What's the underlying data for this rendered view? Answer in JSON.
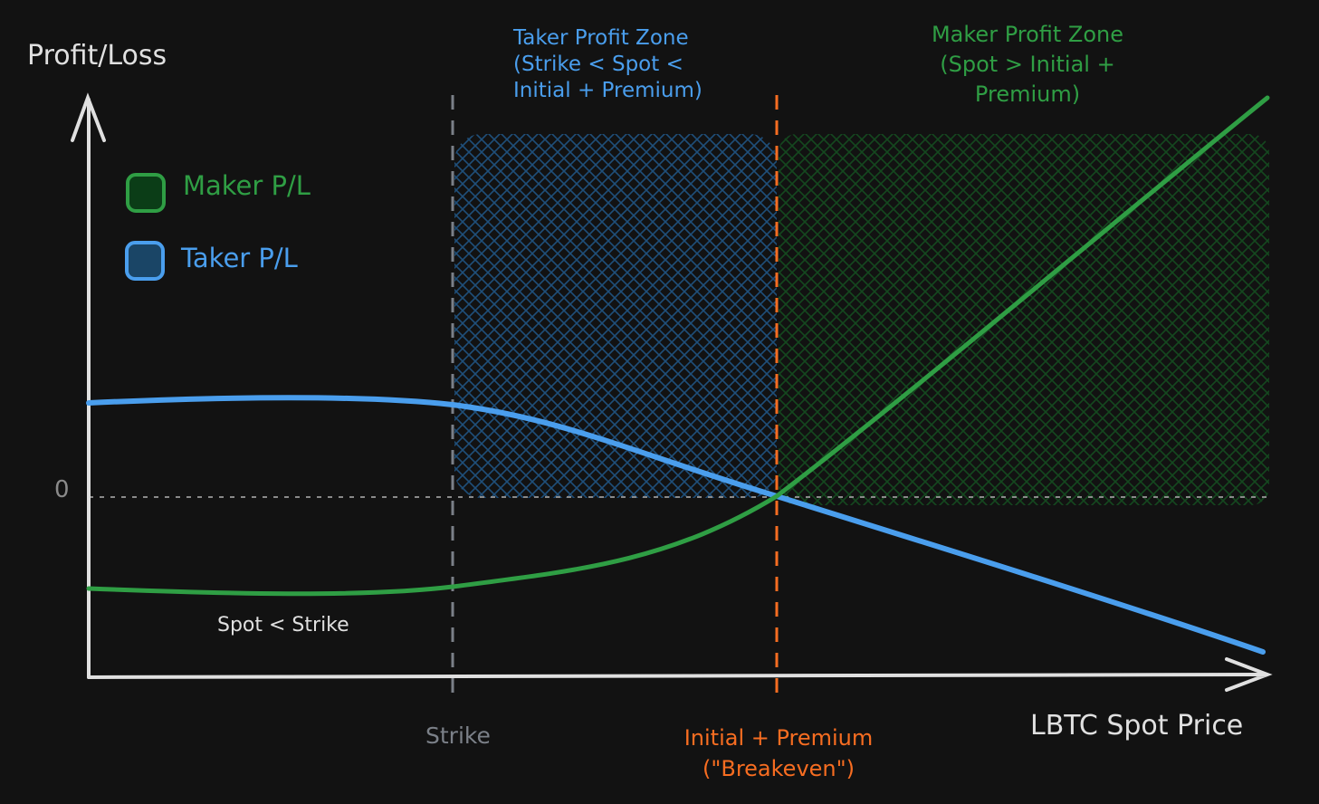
{
  "axes": {
    "y_label": "Profit/Loss",
    "x_label": "LBTC Spot Price",
    "zero_label": "0"
  },
  "legend": {
    "items": [
      {
        "label": "Maker P/L",
        "color": "#2f9e44",
        "fill": "#0b3d17"
      },
      {
        "label": "Taker P/L",
        "color": "#4a9eed",
        "fill": "#1a4566"
      }
    ]
  },
  "zones": {
    "taker": {
      "line1": "Taker Profit Zone",
      "line2": "(Strike < Spot <",
      "line3": "Initial + Premium)",
      "color": "#4a9eed"
    },
    "maker": {
      "line1": "Maker Profit Zone",
      "line2": "(Spot > Initial +",
      "line3": "Premium)",
      "color": "#2f9e44"
    }
  },
  "markers": {
    "strike": {
      "label": "Strike",
      "color": "#7b8088"
    },
    "breakeven": {
      "line1": "Initial + Premium",
      "line2": "(\"Breakeven\")",
      "color": "#f76d21"
    }
  },
  "annotations": {
    "spot_below_strike": "Spot < Strike"
  }
}
